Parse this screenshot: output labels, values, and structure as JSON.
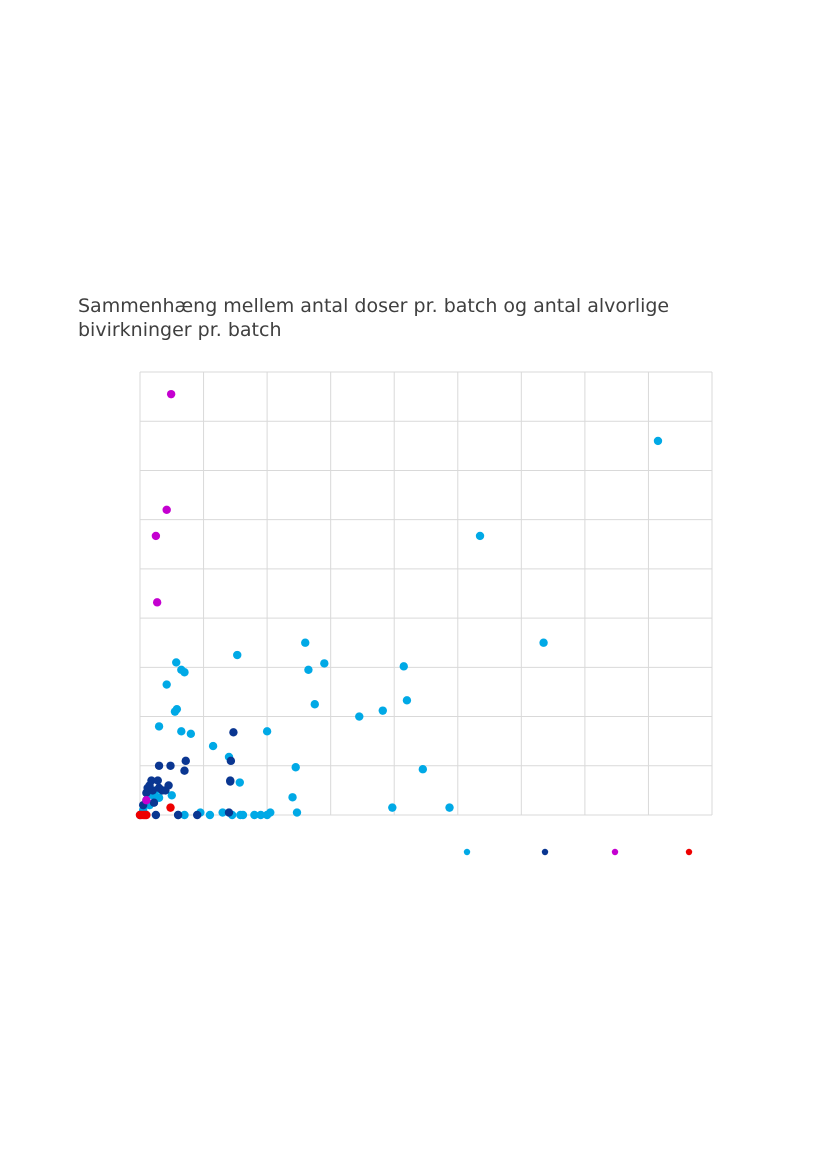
{
  "chart_data": {
    "type": "scatter",
    "title": "Sammenhæng mellem antal doser pr. batch og antal alvorlige bivirkninger pr. batch",
    "xlabel": "",
    "ylabel": "",
    "xlim": [
      0,
      9
    ],
    "ylim": [
      0,
      9
    ],
    "grid": true,
    "legend": "bottom-right",
    "series": [
      {
        "color": "#00a9e6",
        "points": [
          [
            0.05,
            0.1
          ],
          [
            0.1,
            0.3
          ],
          [
            0.15,
            0.2
          ],
          [
            0.2,
            0.4
          ],
          [
            0.3,
            0.35
          ],
          [
            0.25,
            0.5
          ],
          [
            0.3,
            1.8
          ],
          [
            0.42,
            2.65
          ],
          [
            0.5,
            0.4
          ],
          [
            0.55,
            2.1
          ],
          [
            0.58,
            2.15
          ],
          [
            0.57,
            3.1
          ],
          [
            0.65,
            2.95
          ],
          [
            0.65,
            1.7
          ],
          [
            0.7,
            2.9
          ],
          [
            0.6,
            0.0
          ],
          [
            0.7,
            0.0
          ],
          [
            0.8,
            1.65
          ],
          [
            0.95,
            0.05
          ],
          [
            1.1,
            0.0
          ],
          [
            1.15,
            1.4
          ],
          [
            1.3,
            0.05
          ],
          [
            1.4,
            1.18
          ],
          [
            1.45,
            0.0
          ],
          [
            1.53,
            3.25
          ],
          [
            1.57,
            0.66
          ],
          [
            1.58,
            0.0
          ],
          [
            1.62,
            0.0
          ],
          [
            1.8,
            0.0
          ],
          [
            1.9,
            0.0
          ],
          [
            2.0,
            0.0
          ],
          [
            2.0,
            1.7
          ],
          [
            2.05,
            0.05
          ],
          [
            2.4,
            0.36
          ],
          [
            2.45,
            0.97
          ],
          [
            2.47,
            0.05
          ],
          [
            2.6,
            3.5
          ],
          [
            2.65,
            2.95
          ],
          [
            2.75,
            2.25
          ],
          [
            2.9,
            3.08
          ],
          [
            3.45,
            2.0
          ],
          [
            3.82,
            2.12
          ],
          [
            3.97,
            0.15
          ],
          [
            4.15,
            3.02
          ],
          [
            4.2,
            2.33
          ],
          [
            4.45,
            0.93
          ],
          [
            4.87,
            0.15
          ],
          [
            5.35,
            5.67
          ],
          [
            6.35,
            3.5
          ],
          [
            8.15,
            7.6
          ]
        ]
      },
      {
        "color": "#0a3691",
        "points": [
          [
            0.0,
            0.0
          ],
          [
            0.05,
            0.2
          ],
          [
            0.1,
            0.45
          ],
          [
            0.12,
            0.55
          ],
          [
            0.15,
            0.6
          ],
          [
            0.18,
            0.7
          ],
          [
            0.2,
            0.5
          ],
          [
            0.22,
            0.25
          ],
          [
            0.25,
            0.0
          ],
          [
            0.28,
            0.7
          ],
          [
            0.3,
            0.55
          ],
          [
            0.3,
            1.0
          ],
          [
            0.35,
            0.5
          ],
          [
            0.4,
            0.5
          ],
          [
            0.45,
            0.6
          ],
          [
            0.48,
            1.0
          ],
          [
            0.6,
            0.0
          ],
          [
            0.7,
            0.9
          ],
          [
            0.72,
            1.1
          ],
          [
            0.9,
            0.0
          ],
          [
            1.4,
            0.05
          ],
          [
            1.42,
            0.7
          ],
          [
            1.42,
            0.68
          ],
          [
            1.43,
            1.1
          ],
          [
            1.47,
            1.68
          ]
        ]
      },
      {
        "color": "#c400d0",
        "points": [
          [
            0.1,
            0.3
          ],
          [
            0.25,
            5.67
          ],
          [
            0.27,
            4.32
          ],
          [
            0.42,
            6.2
          ],
          [
            0.49,
            8.55
          ]
        ]
      },
      {
        "color": "#ee0000",
        "points": [
          [
            0.0,
            0.0
          ],
          [
            0.03,
            0.0
          ],
          [
            0.06,
            0.0
          ],
          [
            0.08,
            0.0
          ],
          [
            0.1,
            0.0
          ],
          [
            0.48,
            0.15
          ]
        ]
      }
    ]
  }
}
